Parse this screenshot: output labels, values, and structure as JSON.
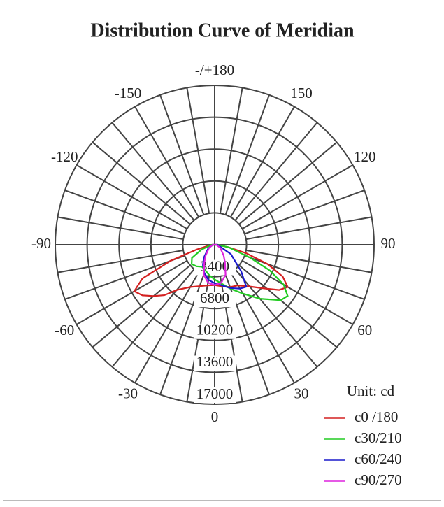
{
  "chart_data": {
    "type": "polar",
    "title": "Distribution Curve of  Meridian",
    "legend_title": "Unit: cd",
    "legend": "bottom-right",
    "rlim": [
      0,
      17000
    ],
    "rticks": [
      3400,
      6800,
      10200,
      13600,
      17000
    ],
    "angle_ticks": [
      {
        "value": 180,
        "label": "-/+180"
      },
      150,
      120,
      90,
      60,
      30,
      0,
      -30,
      -60,
      -90,
      -120,
      -150
    ],
    "series": [
      {
        "name": "c0 /180",
        "color": "#d42020",
        "angles": [
          -90,
          -80,
          -75,
          -70,
          -65,
          -60,
          -55,
          -50,
          -45,
          -40,
          -30,
          -20,
          -10,
          0,
          10,
          20,
          30,
          40,
          50,
          55,
          60,
          65,
          70,
          75,
          80,
          90
        ],
        "values": [
          300,
          800,
          2000,
          5000,
          8500,
          9900,
          9400,
          8500,
          7600,
          6300,
          5200,
          4700,
          4400,
          4300,
          4500,
          4800,
          5000,
          5800,
          7300,
          8400,
          9000,
          8000,
          6000,
          3500,
          1500,
          300
        ]
      },
      {
        "name": "c30/210",
        "color": "#22cc22",
        "angles": [
          -90,
          -70,
          -60,
          -50,
          -40,
          -30,
          -20,
          -10,
          0,
          10,
          20,
          30,
          40,
          50,
          55,
          60,
          65,
          70,
          80,
          90
        ],
        "values": [
          300,
          1500,
          2800,
          3200,
          3000,
          2700,
          2900,
          3300,
          3700,
          4200,
          5000,
          6000,
          7500,
          9200,
          9500,
          8500,
          6500,
          4000,
          1500,
          300
        ]
      },
      {
        "name": "c60/240",
        "color": "#1a1acc",
        "angles": [
          -90,
          -60,
          -40,
          -30,
          -20,
          -10,
          0,
          10,
          20,
          30,
          37,
          45,
          60,
          90
        ],
        "values": [
          200,
          800,
          1800,
          2500,
          3200,
          3800,
          4100,
          4400,
          4900,
          5400,
          5600,
          4000,
          2000,
          300
        ]
      },
      {
        "name": "c90/270",
        "color": "#dd22dd",
        "angles": [
          -90,
          -60,
          -40,
          -30,
          -20,
          -10,
          0,
          10,
          20,
          30,
          40,
          60,
          90
        ],
        "values": [
          200,
          700,
          1500,
          2200,
          3400,
          4100,
          4300,
          4100,
          3400,
          2200,
          1500,
          700,
          200
        ]
      }
    ]
  }
}
